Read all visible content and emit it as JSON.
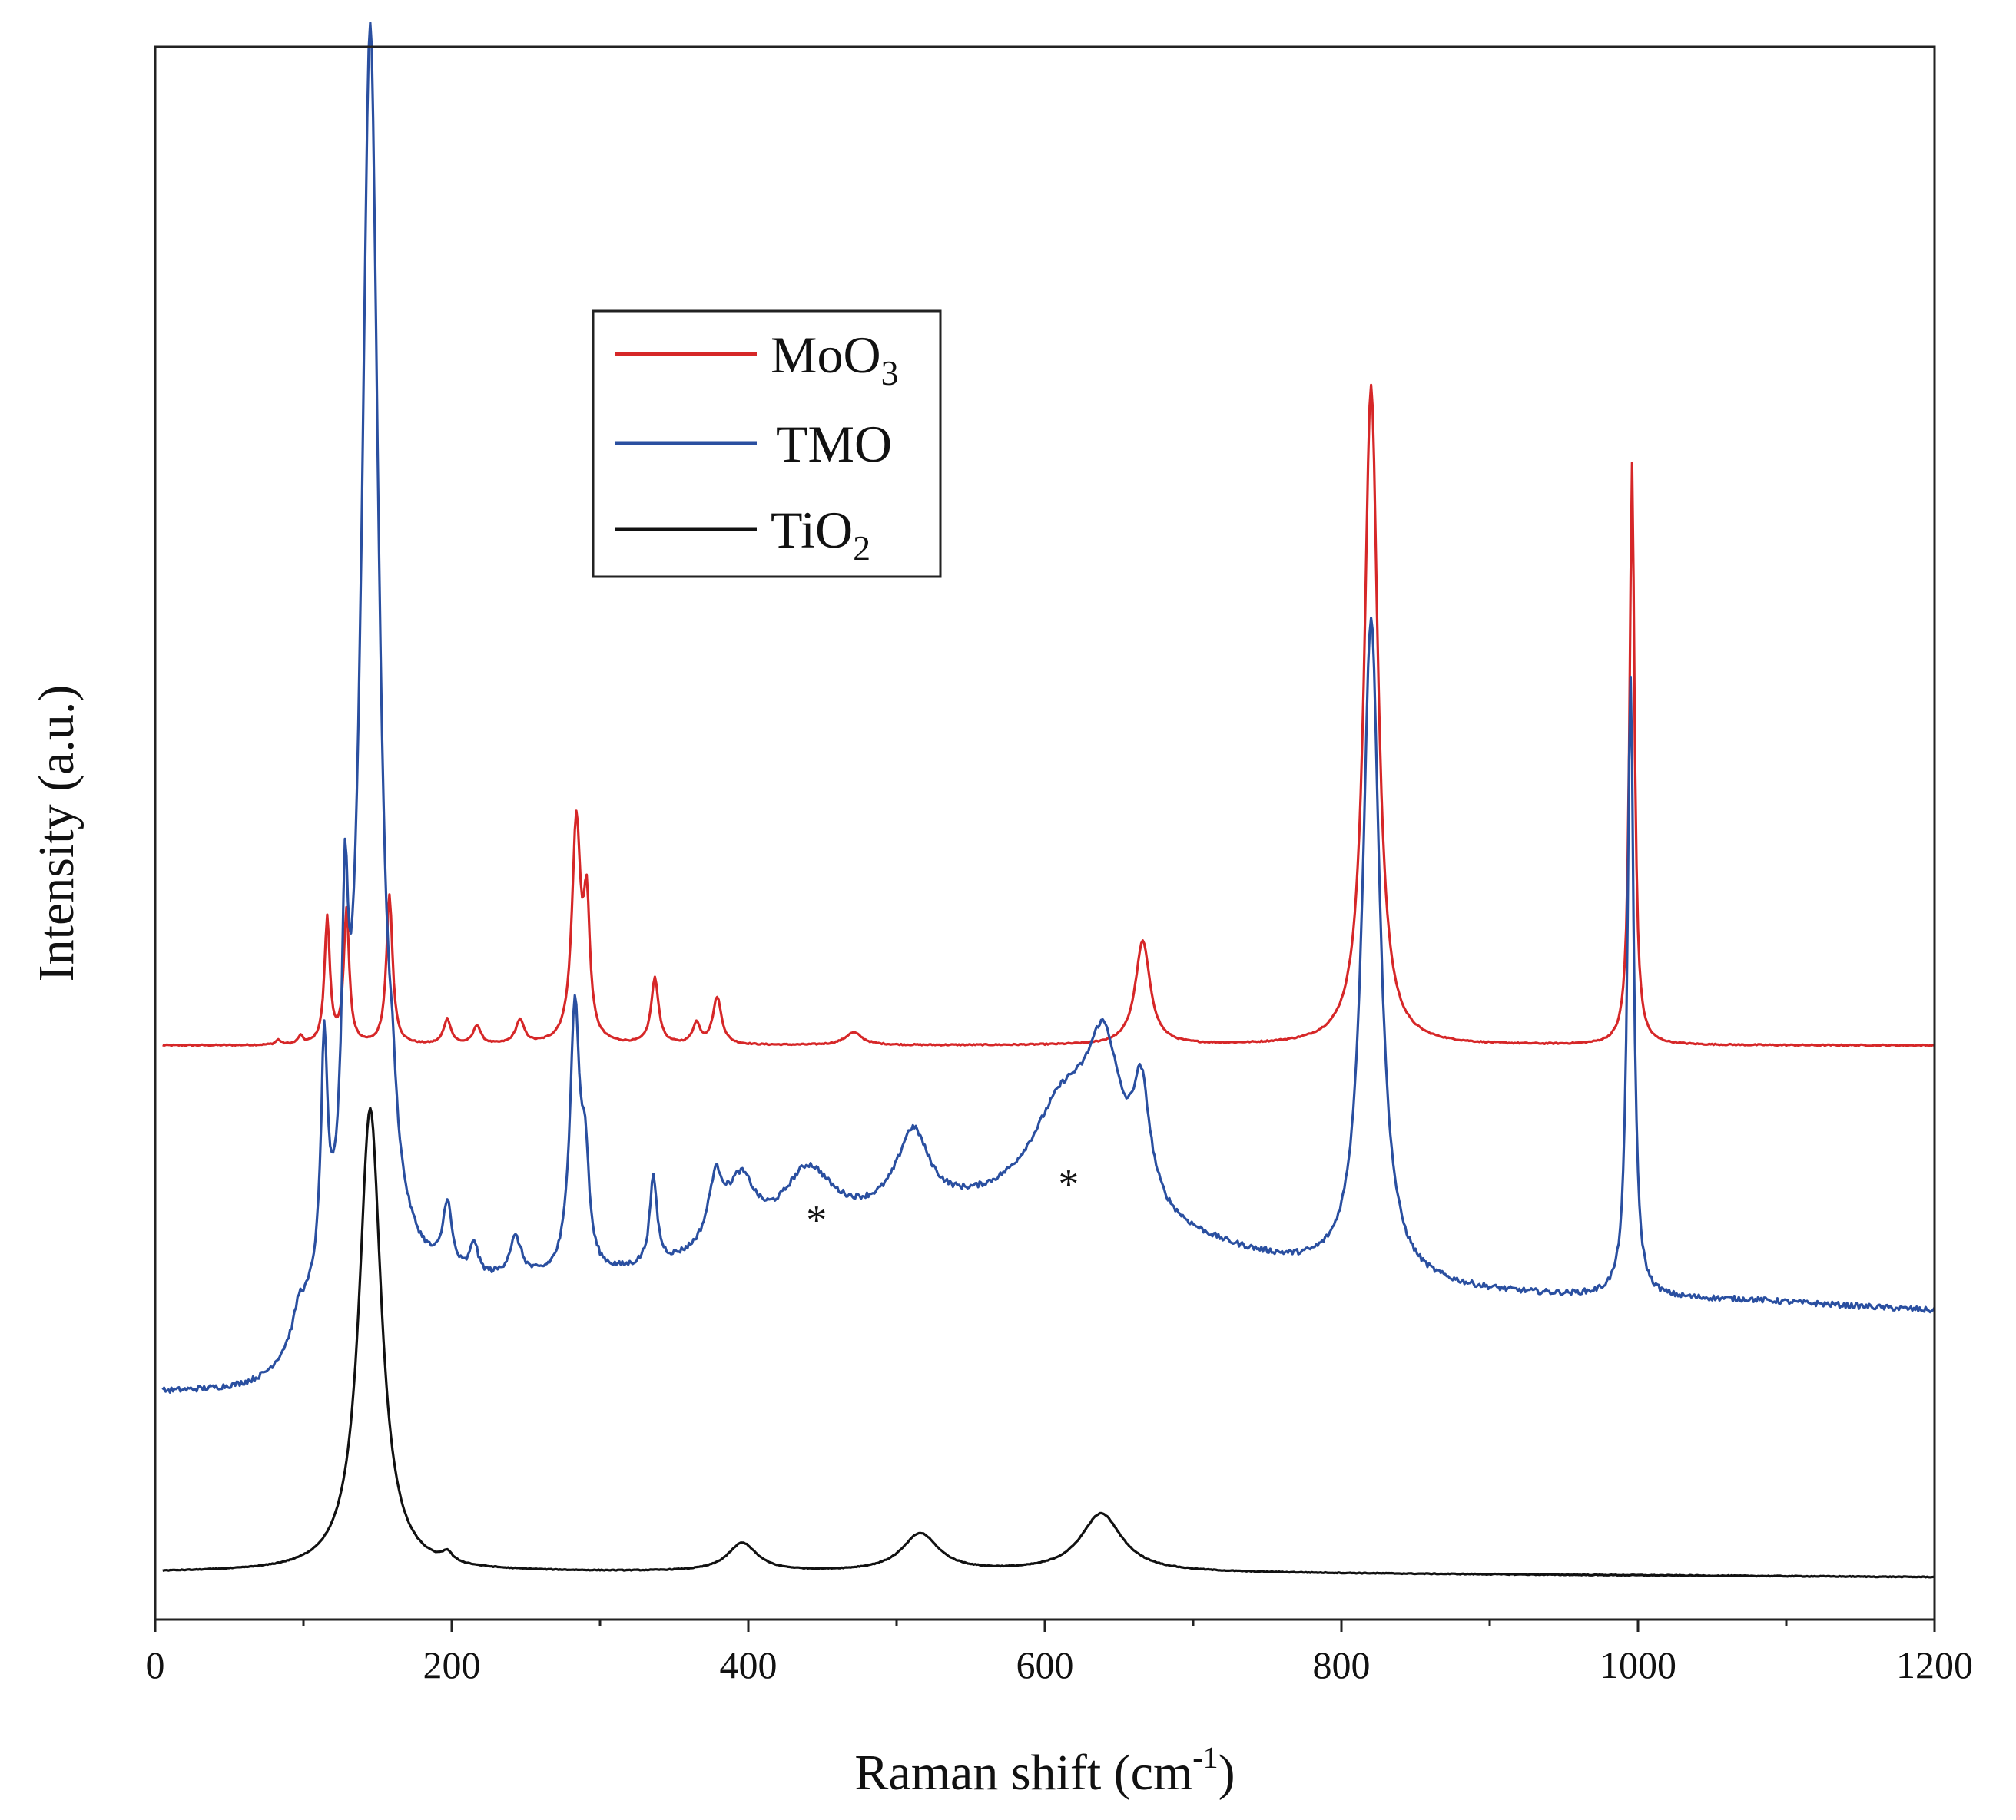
{
  "chart_data": {
    "type": "line",
    "title": "",
    "xlabel": "Raman shift (cm-1)",
    "xlabel_parts": {
      "main": "Raman shift (cm",
      "sup": "-1",
      "close": ")"
    },
    "ylabel": "Intensity (a.u.)",
    "xlim": [
      0,
      1200
    ],
    "ylim": [
      0,
      100
    ],
    "x_ticks": [
      0,
      200,
      400,
      600,
      800,
      1000,
      1200
    ],
    "x_tick_labels": [
      "0",
      "200",
      "400",
      "600",
      "800",
      "1000",
      "1200"
    ],
    "x_minor_step": 100,
    "y_ticks_shown": false,
    "legend_position": "upper-center",
    "series": [
      {
        "name": "MoO3",
        "legend": {
          "main": "MoO",
          "sub": "3"
        },
        "color": "#d62728",
        "baseline": 36.5,
        "x_start": 5,
        "noise": 0.08,
        "peaks": [
          [
            83,
            0.3,
            2
          ],
          [
            98,
            0.5,
            2
          ],
          [
            116,
            8,
            2.2
          ],
          [
            129,
            8.5,
            2.2
          ],
          [
            158,
            9.5,
            2.5
          ],
          [
            197,
            1.6,
            3
          ],
          [
            217,
            1.2,
            3
          ],
          [
            246,
            1.5,
            3.5
          ],
          [
            284,
            14,
            3.5
          ],
          [
            291,
            8,
            2.5
          ],
          [
            337,
            4.2,
            3
          ],
          [
            365,
            1.3,
            3
          ],
          [
            379,
            3.0,
            3.5
          ],
          [
            471,
            0.8,
            7
          ],
          [
            666,
            6.6,
            6
          ],
          [
            820,
            42,
            5.5
          ],
          [
            996,
            37,
            2
          ]
        ]
      },
      {
        "name": "TMO",
        "legend": {
          "main": "TMO",
          "sub": ""
        },
        "color": "#2a4fa0",
        "baseline": 14.3,
        "x_start": 5,
        "noise": 0.35,
        "slope_start": 1075,
        "slope_amount": 0.6,
        "steps": [
          [
            100,
            6.5,
            10
          ],
          [
            420,
            6.2,
            60
          ],
          [
            700,
            -6.8,
            80
          ]
        ],
        "peaks": [
          [
            97,
            1.5,
            4
          ],
          [
            114,
            14,
            2.5
          ],
          [
            128,
            17,
            2.5
          ],
          [
            145,
            80,
            7
          ],
          [
            160,
            3,
            3
          ],
          [
            197,
            4.2,
            3.5
          ],
          [
            215,
            2.0,
            3
          ],
          [
            243,
            2.5,
            5
          ],
          [
            283,
            17,
            4
          ],
          [
            290,
            6,
            3
          ],
          [
            336,
            5.5,
            3
          ],
          [
            378,
            4,
            6
          ],
          [
            395,
            4,
            12
          ],
          [
            440,
            4,
            20
          ],
          [
            511,
            5,
            13
          ],
          [
            613,
            7,
            28
          ],
          [
            640,
            9,
            14
          ],
          [
            665,
            7,
            7
          ],
          [
            820,
            42,
            7
          ],
          [
            995,
            39.5,
            2.5
          ]
        ]
      },
      {
        "name": "TiO2",
        "legend": {
          "main": "TiO",
          "sub": "2"
        },
        "color": "#111111",
        "baseline": 3.0,
        "x_start": 5,
        "noise": 0.05,
        "slope_start": 640,
        "slope_amount": 0.3,
        "peaks": [
          [
            145,
            29.5,
            9
          ],
          [
            197,
            0.6,
            4
          ],
          [
            396,
            1.8,
            12
          ],
          [
            516,
            2.4,
            15
          ],
          [
            638,
            3.7,
            17
          ]
        ]
      }
    ],
    "annotations": [
      {
        "text": "*",
        "x": 446,
        "y": 25.6
      },
      {
        "text": "*",
        "x": 616,
        "y": 27.9
      }
    ]
  }
}
